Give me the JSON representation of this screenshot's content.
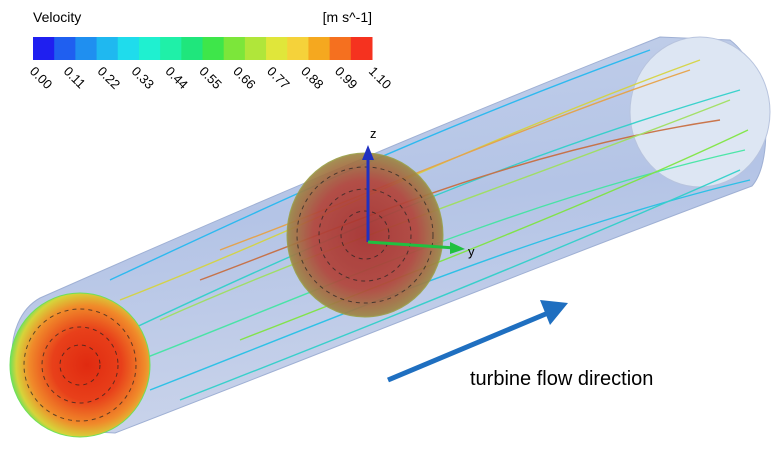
{
  "legend": {
    "title": "Velocity",
    "unit": "[m s^-1]",
    "ticks": [
      "0.00",
      "0.11",
      "0.22",
      "0.33",
      "0.44",
      "0.55",
      "0.66",
      "0.77",
      "0.88",
      "0.99",
      "1.10"
    ],
    "colors": [
      "#1f1ff0",
      "#1f5ff0",
      "#1f8ff0",
      "#1fb8f0",
      "#1fdcec",
      "#1ff0d0",
      "#1ff0a8",
      "#1fe67c",
      "#3ee64a",
      "#7ce63a",
      "#b0e63a",
      "#e0e63a",
      "#f5d23a",
      "#f5a81f",
      "#f5701f",
      "#f5321f"
    ]
  },
  "axes": {
    "z": "z",
    "y": "y"
  },
  "annotation": "turbine flow direction"
}
